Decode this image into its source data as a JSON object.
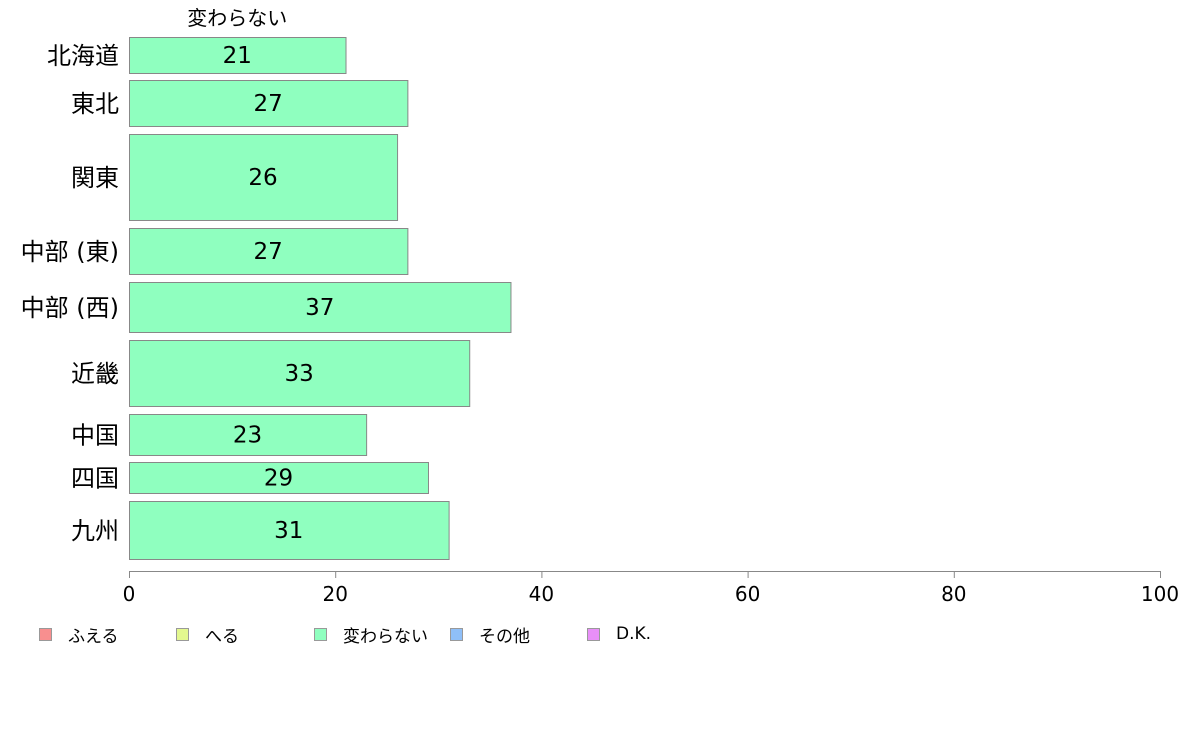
{
  "chart_data": {
    "type": "bar",
    "orientation": "horizontal",
    "segment_label": "変わらない",
    "categories": [
      "北海道",
      "東北",
      "関東",
      "中部 (東)",
      "中部 (西)",
      "近畿",
      "中国",
      "四国",
      "九州"
    ],
    "values": [
      21,
      27,
      26,
      27,
      37,
      33,
      23,
      29,
      31
    ],
    "series": [
      {
        "name": "ふえる",
        "color": "#f88f8f",
        "values": [
          0,
          0,
          0,
          0,
          0,
          0,
          0,
          0,
          0
        ]
      },
      {
        "name": "へる",
        "color": "#e3f88f",
        "values": [
          0,
          0,
          0,
          0,
          0,
          0,
          0,
          0,
          0
        ]
      },
      {
        "name": "変わらない",
        "color": "#8fffbf",
        "values": [
          21,
          27,
          26,
          27,
          37,
          33,
          23,
          29,
          31
        ]
      },
      {
        "name": "その他",
        "color": "#8fbff8",
        "values": [
          0,
          0,
          0,
          0,
          0,
          0,
          0,
          0,
          0
        ]
      },
      {
        "name": "D.K.",
        "color": "#e88ff8",
        "values": [
          0,
          0,
          0,
          0,
          0,
          0,
          0,
          0,
          0
        ]
      }
    ],
    "xlim": [
      0,
      100
    ],
    "x_ticks": [
      0,
      20,
      40,
      60,
      80,
      100
    ],
    "grid": false,
    "legend_position": "bottom"
  }
}
